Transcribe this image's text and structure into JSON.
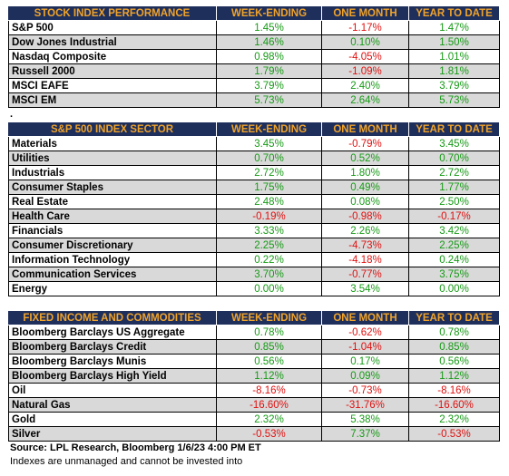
{
  "separator": ".",
  "sections": [
    {
      "header": [
        "STOCK INDEX PERFORMANCE",
        "WEEK-ENDING",
        "ONE MONTH",
        "YEAR TO DATE"
      ],
      "rows": [
        [
          "S&P 500",
          "1.45%",
          "-1.17%",
          "1.47%"
        ],
        [
          "Dow Jones Industrial",
          "1.46%",
          "0.10%",
          "1.50%"
        ],
        [
          "Nasdaq Composite",
          "0.98%",
          "-4.05%",
          "1.01%"
        ],
        [
          "Russell 2000",
          "1.79%",
          "-1.09%",
          "1.81%"
        ],
        [
          "MSCI EAFE",
          "3.79%",
          "2.40%",
          "3.79%"
        ],
        [
          "MSCI EM",
          "5.73%",
          "2.64%",
          "5.73%"
        ]
      ]
    },
    {
      "header": [
        "S&P 500 INDEX SECTOR",
        "WEEK-ENDING",
        "ONE MONTH",
        "YEAR TO DATE"
      ],
      "rows": [
        [
          "Materials",
          "3.45%",
          "-0.79%",
          "3.45%"
        ],
        [
          "Utilities",
          "0.70%",
          "0.52%",
          "0.70%"
        ],
        [
          "Industrials",
          "2.72%",
          "1.80%",
          "2.72%"
        ],
        [
          "Consumer Staples",
          "1.75%",
          "0.49%",
          "1.77%"
        ],
        [
          "Real Estate",
          "2.48%",
          "0.08%",
          "2.50%"
        ],
        [
          "Health Care",
          "-0.19%",
          "-0.98%",
          "-0.17%"
        ],
        [
          "Financials",
          "3.33%",
          "2.26%",
          "3.42%"
        ],
        [
          "Consumer Discretionary",
          "2.25%",
          "-4.73%",
          "2.25%"
        ],
        [
          "Information Technology",
          "0.22%",
          "-4.18%",
          "0.24%"
        ],
        [
          "Communication Services",
          "3.70%",
          "-0.77%",
          "3.75%"
        ],
        [
          "Energy",
          "0.00%",
          "3.54%",
          "0.00%"
        ]
      ]
    },
    {
      "header": [
        "FIXED INCOME AND COMMODITIES",
        "WEEK-ENDING",
        "ONE MONTH",
        "YEAR TO DATE"
      ],
      "rows": [
        [
          "Bloomberg Barclays US Aggregate",
          "0.78%",
          "-0.62%",
          "0.78%"
        ],
        [
          "Bloomberg Barclays Credit",
          "0.85%",
          "-1.04%",
          "0.85%"
        ],
        [
          "Bloomberg Barclays Munis",
          "0.56%",
          "0.17%",
          "0.56%"
        ],
        [
          "Bloomberg Barclays High Yield",
          "1.12%",
          "0.09%",
          "1.12%"
        ],
        [
          "Oil",
          "-8.16%",
          "-0.73%",
          "-8.16%"
        ],
        [
          "Natural Gas",
          "-16.60%",
          "-31.76%",
          "-16.60%"
        ],
        [
          "Gold",
          "2.32%",
          "5.38%",
          "2.32%"
        ],
        [
          "Silver",
          "-0.53%",
          "7.37%",
          "-0.53%"
        ]
      ]
    }
  ],
  "source": "Source: LPL Research, Bloomberg 1/6/23 4:00 PM ET",
  "footnote": "Indexes are unmanaged and cannot be invested into"
}
